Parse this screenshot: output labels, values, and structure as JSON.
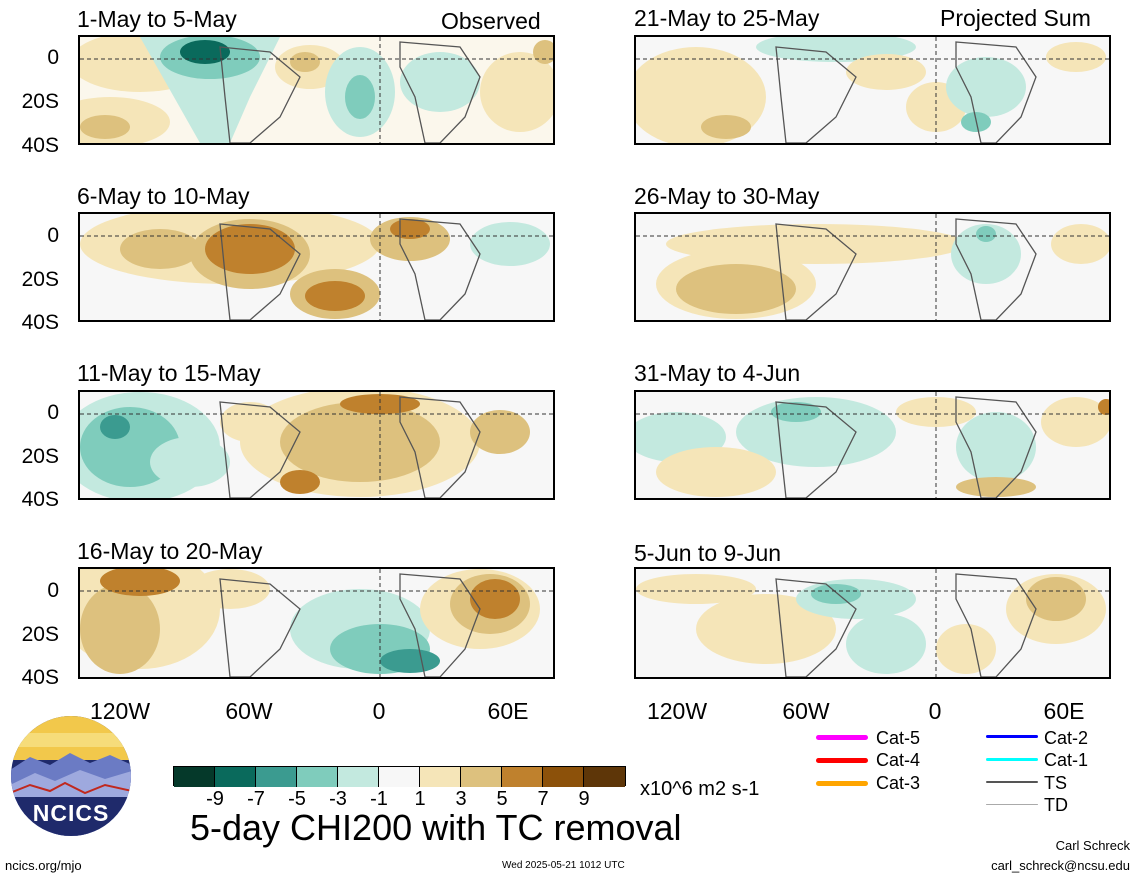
{
  "header": {
    "observed_label": "Observed",
    "projected_label": "Projected Sum"
  },
  "panels": [
    {
      "title": "1-May to 5-May"
    },
    {
      "title": "6-May to 10-May"
    },
    {
      "title": "11-May to 15-May"
    },
    {
      "title": "16-May to 20-May"
    },
    {
      "title": "21-May to 25-May"
    },
    {
      "title": "26-May to 30-May"
    },
    {
      "title": "31-May to 4-Jun"
    },
    {
      "title": "5-Jun to 9-Jun"
    }
  ],
  "lat_labels": [
    "0",
    "20S",
    "40S"
  ],
  "lon_labels": [
    "120W",
    "60W",
    "0",
    "60E"
  ],
  "colorbar": {
    "colors": [
      "#05392a",
      "#0a6a5c",
      "#3b9b90",
      "#7fccbc",
      "#c3e9df",
      "#f7f7f7",
      "#f5e5b8",
      "#ddc17e",
      "#bf812d",
      "#8c510a",
      "#5e3608"
    ],
    "ticks": [
      "-9",
      "-7",
      "-5",
      "-3",
      "-1",
      "1",
      "3",
      "5",
      "7",
      "9"
    ],
    "units": "x10^6 m2 s-1"
  },
  "legend": [
    {
      "label": "Cat-5",
      "color": "#ff00ff"
    },
    {
      "label": "Cat-4",
      "color": "#ff0000"
    },
    {
      "label": "Cat-3",
      "color": "#ffa500"
    },
    {
      "label": "Cat-2",
      "color": "#0000ff"
    },
    {
      "label": "Cat-1",
      "color": "#00ffff"
    },
    {
      "label": "TS",
      "color": "#555555"
    },
    {
      "label": "TD",
      "color": "#aaaaaa"
    }
  ],
  "main_title": "5-day CHI200 with TC removal",
  "logo_text": "NCICS",
  "footer": {
    "website": "ncics.org/mjo",
    "timestamp": "Wed 2025-05-21 1012 UTC",
    "author": "Carl Schreck",
    "email": "carl_schreck@ncsu.edu"
  }
}
